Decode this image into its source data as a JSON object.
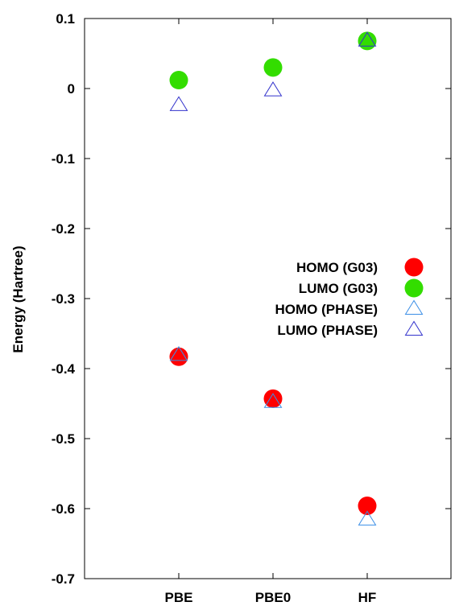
{
  "chart_data": {
    "type": "scatter",
    "title": "",
    "xlabel": "",
    "ylabel": "Energy (Hartree)",
    "categories": [
      "PBE",
      "PBE0",
      "HF"
    ],
    "ylim": [
      -0.7,
      0.1
    ],
    "yticks": [
      0.1,
      0,
      -0.1,
      -0.2,
      -0.3,
      -0.4,
      -0.5,
      -0.6,
      -0.7
    ],
    "ytick_labels": [
      "0.1",
      "0",
      "-0.1",
      "-0.2",
      "-0.3",
      "-0.4",
      "-0.5",
      "-0.6",
      "-0.7"
    ],
    "grid": false,
    "legend_position": "right",
    "series": [
      {
        "name": "HOMO (G03)",
        "marker": "circle",
        "color": "#ff0000",
        "values": [
          -0.383,
          -0.443,
          -0.596
        ]
      },
      {
        "name": "LUMO (G03)",
        "marker": "circle",
        "color": "#33dd00",
        "values": [
          0.012,
          0.03,
          0.068
        ]
      },
      {
        "name": "HOMO (PHASE)",
        "marker": "triangle",
        "color": "#3b8ee6",
        "values": [
          -0.381,
          -0.448,
          -0.616
        ]
      },
      {
        "name": "LUMO (PHASE)",
        "marker": "triangle",
        "color": "#3333cc",
        "values": [
          -0.024,
          -0.003,
          0.068
        ]
      }
    ]
  }
}
